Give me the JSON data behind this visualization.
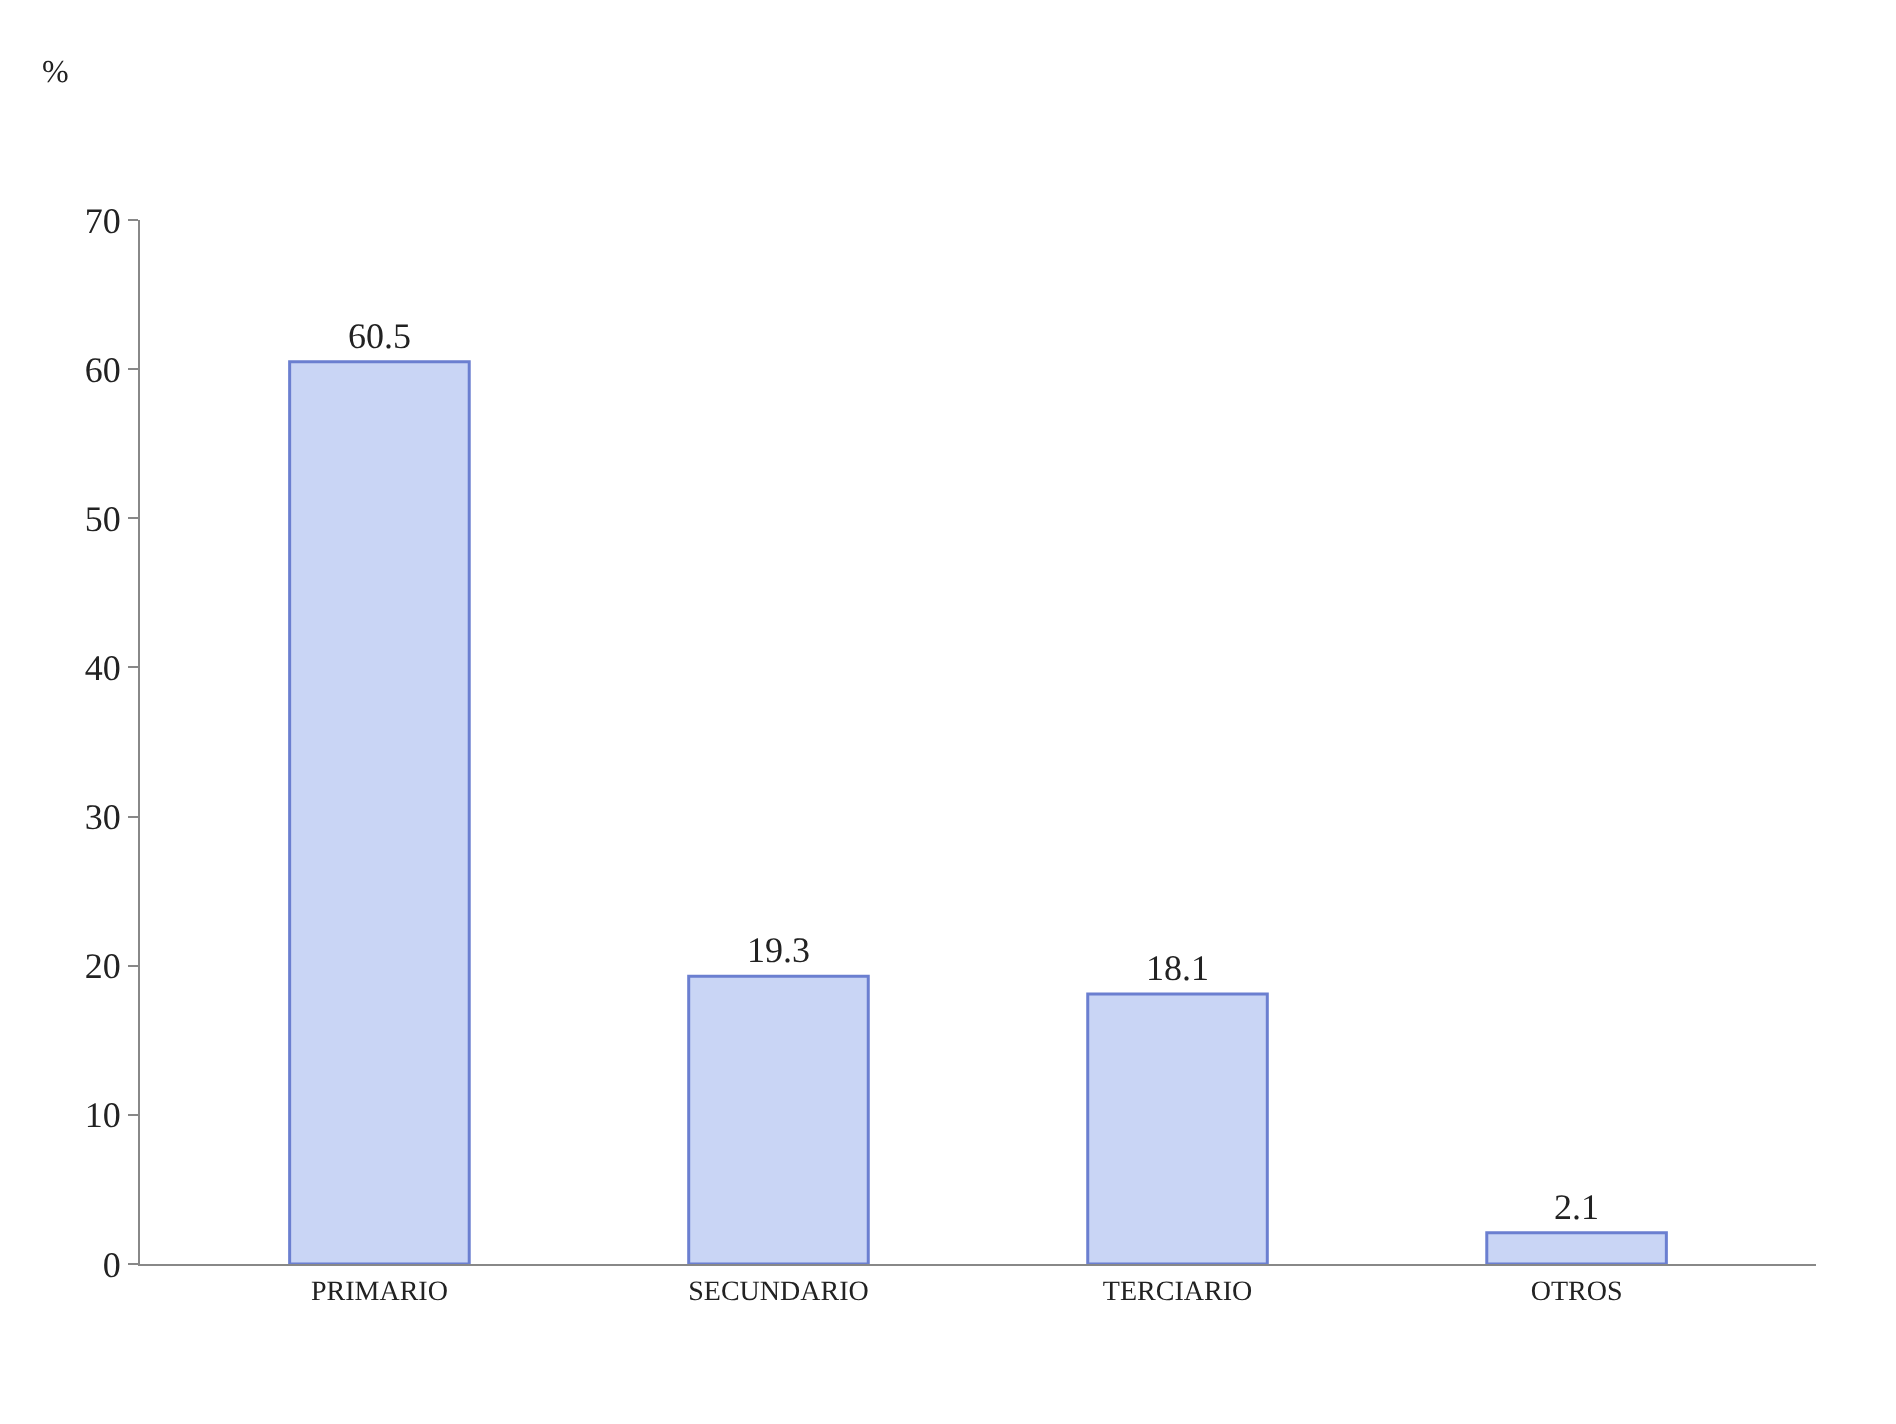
{
  "chart_data": {
    "type": "bar",
    "ylabel": "%",
    "categories": [
      "PRIMARIO",
      "SECUNDARIO",
      "TERCIARIO",
      "OTROS"
    ],
    "values": [
      60.5,
      19.3,
      18.1,
      2.1
    ],
    "color": "#c9d5f5",
    "ylim": [
      0,
      70
    ],
    "yticks": [
      0,
      10,
      20,
      30,
      40,
      50,
      60,
      70
    ],
    "data_labels": true,
    "grid": false,
    "legend": false
  }
}
